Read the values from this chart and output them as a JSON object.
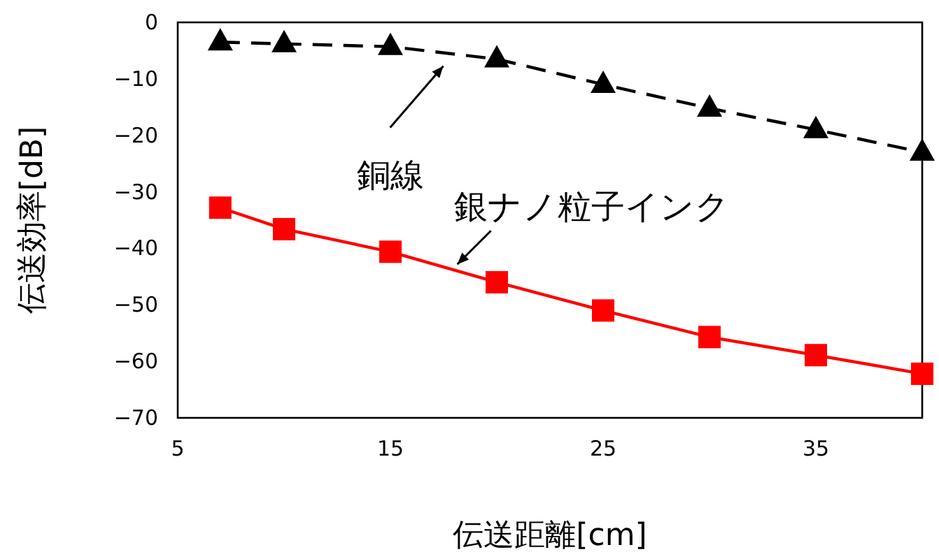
{
  "chart_data": {
    "type": "line",
    "xlabel": "伝送距離[cm]",
    "ylabel": "伝送効率[dB]",
    "x": [
      7,
      10,
      15,
      20,
      25,
      30,
      35,
      40
    ],
    "series": [
      {
        "name": "銅線",
        "color": "#000000",
        "marker": "triangle",
        "line_style": "dashed",
        "values": [
          -3.5,
          -3.8,
          -4.3,
          -6.5,
          -11,
          -15.2,
          -19,
          -23
        ]
      },
      {
        "name": "銀ナノ粒子インク",
        "color": "#ff0000",
        "marker": "square",
        "line_style": "solid",
        "values": [
          -32.8,
          -36.6,
          -40.6,
          -46,
          -51,
          -55.7,
          -58.9,
          -62.2
        ]
      }
    ],
    "xlim": [
      5,
      40
    ],
    "ylim": [
      -70,
      0
    ],
    "xticks": [
      5,
      15,
      25,
      35
    ],
    "yticks": [
      0,
      -10,
      -20,
      -30,
      -40,
      -50,
      -60,
      -70
    ],
    "grid": false
  }
}
